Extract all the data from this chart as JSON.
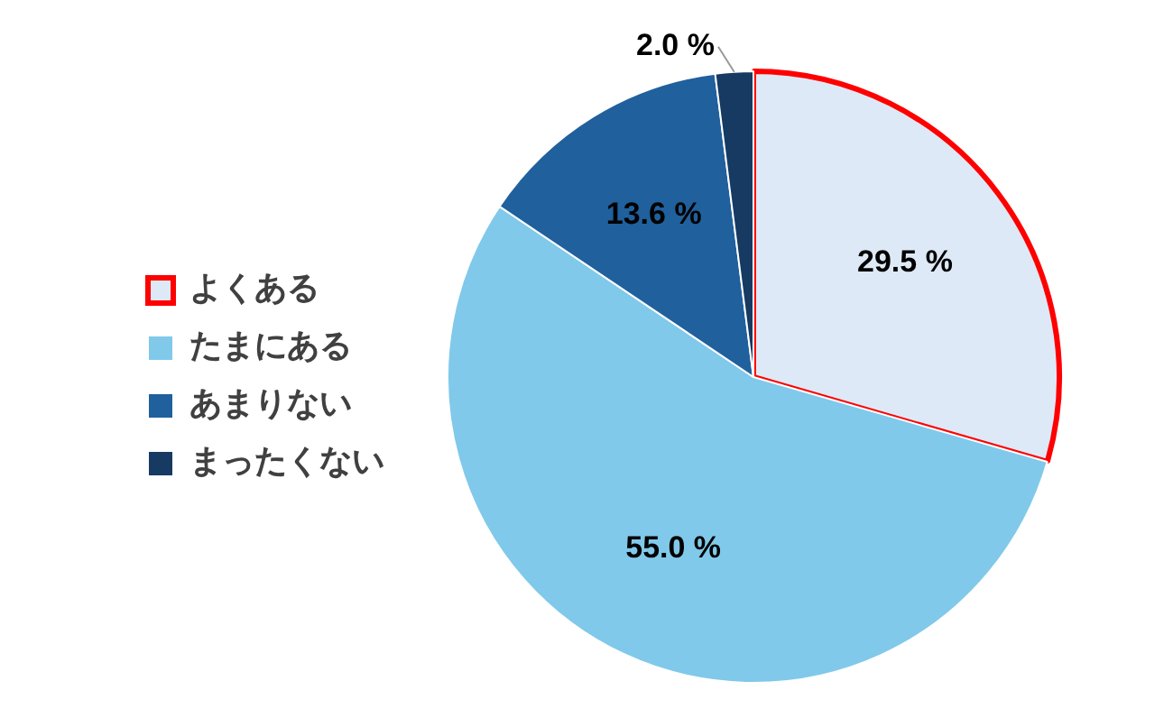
{
  "chart_data": {
    "type": "pie",
    "categories": [
      "よくある",
      "たまにある",
      "あまりない",
      "まったくない"
    ],
    "values": [
      29.5,
      55.0,
      13.6,
      2.0
    ],
    "colors": [
      "#dde9f6",
      "#80c9ea",
      "#20609d",
      "#163a62"
    ],
    "value_labels": [
      "29.5 %",
      "55.0 %",
      "13.6 %",
      "2.0 %"
    ],
    "legend": "left"
  }
}
